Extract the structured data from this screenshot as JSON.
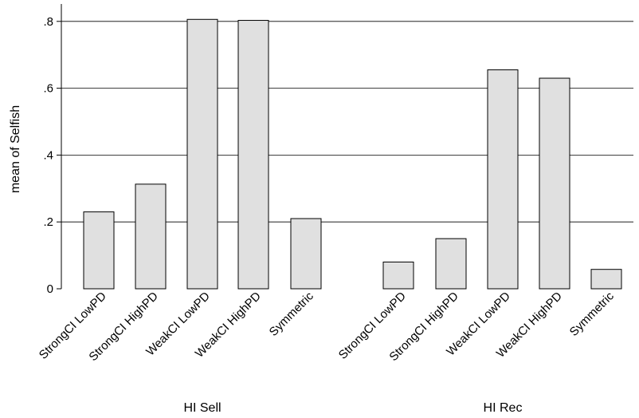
{
  "chart_data": {
    "type": "bar",
    "ylabel": "mean of Selfish",
    "ylim": [
      0,
      0.85
    ],
    "y_ticks": [
      {
        "value": 0,
        "label": "0"
      },
      {
        "value": 0.2,
        "label": ".2"
      },
      {
        "value": 0.4,
        "label": ".4"
      },
      {
        "value": 0.6,
        "label": ".6"
      },
      {
        "value": 0.8,
        "label": ".8"
      }
    ],
    "grid": true,
    "bar_color": "#e0e0e0",
    "groups": [
      {
        "label": "HI Sell",
        "categories": [
          "StrongCI LowPD",
          "StrongCI HighPD",
          "WeakCI LowPD",
          "WeakCI HighPD",
          "Symmetric"
        ],
        "values": [
          0.23,
          0.313,
          0.806,
          0.803,
          0.21
        ]
      },
      {
        "label": "HI Rec",
        "categories": [
          "StrongCI LowPD",
          "StrongCI HighPD",
          "WeakCI LowPD",
          "WeakCI HighPD",
          "Symmetric"
        ],
        "values": [
          0.08,
          0.15,
          0.655,
          0.63,
          0.058
        ]
      }
    ]
  }
}
